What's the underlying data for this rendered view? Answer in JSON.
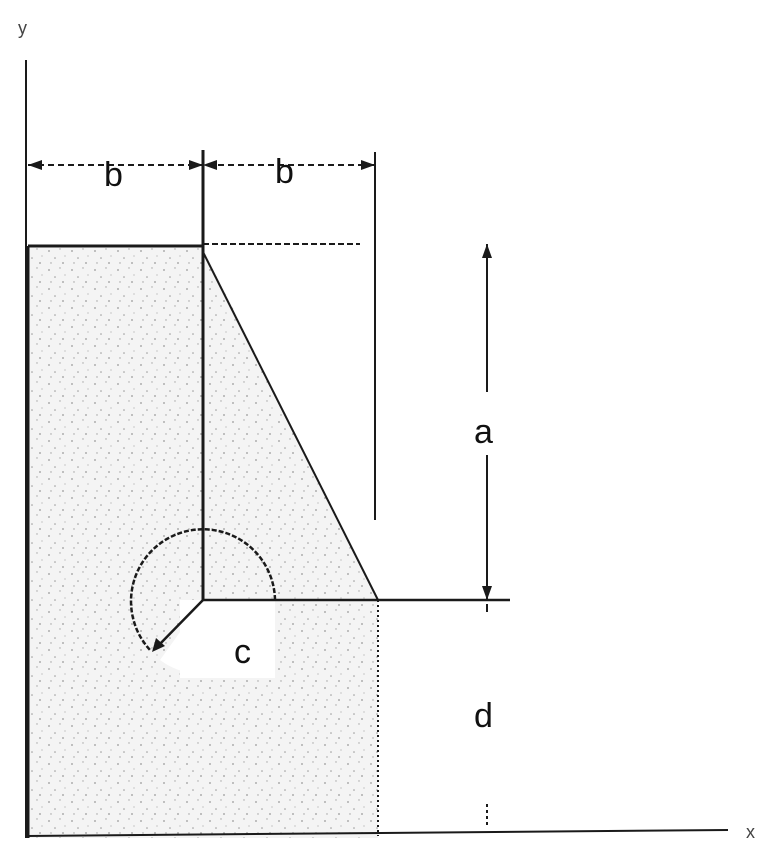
{
  "diagram": {
    "axes": {
      "x_label": "x",
      "y_label": "y"
    },
    "dimensions": {
      "b_left": "b",
      "b_right": "b",
      "a": "a",
      "c": "c",
      "d": "d"
    },
    "colors": {
      "line": "#1a1a1a",
      "fill": "#f3f3f3",
      "stipple": "#9a9a9a"
    }
  }
}
